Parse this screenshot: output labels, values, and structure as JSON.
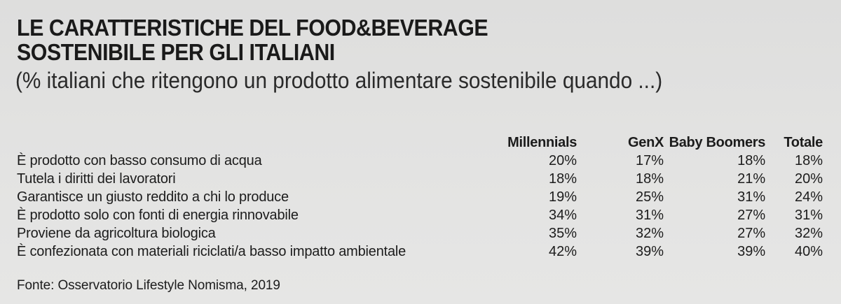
{
  "chart_data": {
    "type": "table",
    "title_line1": "LE CARATTERISTICHE DEL FOOD&BEVERAGE",
    "title_line2": "SOSTENIBILE PER GLI ITALIANI",
    "subtitle": "(% italiani che ritengono un prodotto alimentare sostenibile quando ...)",
    "columns": [
      "Millennials",
      "GenX",
      "Baby Boomers",
      "Totale"
    ],
    "rows": [
      {
        "label": "È prodotto con basso consumo di acqua",
        "values": [
          "20%",
          "17%",
          "18%",
          "18%"
        ]
      },
      {
        "label": "Tutela i diritti dei lavoratori",
        "values": [
          "18%",
          "18%",
          "21%",
          "20%"
        ]
      },
      {
        "label": "Garantisce un giusto reddito a chi lo produce",
        "values": [
          "19%",
          "25%",
          "31%",
          "24%"
        ]
      },
      {
        "label": "È prodotto solo con fonti di energia rinnovabile",
        "values": [
          "34%",
          "31%",
          "27%",
          "31%"
        ]
      },
      {
        "label": "Proviene da agricoltura biologica",
        "values": [
          "35%",
          "32%",
          "27%",
          "32%"
        ]
      },
      {
        "label": "È confezionata con materiali riciclati/a basso impatto ambientale",
        "values": [
          "42%",
          "39%",
          "39%",
          "40%"
        ]
      }
    ],
    "series": [
      {
        "name": "Millennials",
        "values": [
          20,
          18,
          19,
          34,
          35,
          42
        ]
      },
      {
        "name": "GenX",
        "values": [
          17,
          18,
          25,
          31,
          32,
          39
        ]
      },
      {
        "name": "Baby Boomers",
        "values": [
          18,
          21,
          31,
          27,
          27,
          39
        ]
      },
      {
        "name": "Totale",
        "values": [
          18,
          20,
          24,
          31,
          32,
          40
        ]
      }
    ],
    "source": "Fonte: Osservatorio Lifestyle Nomisma, 2019"
  }
}
